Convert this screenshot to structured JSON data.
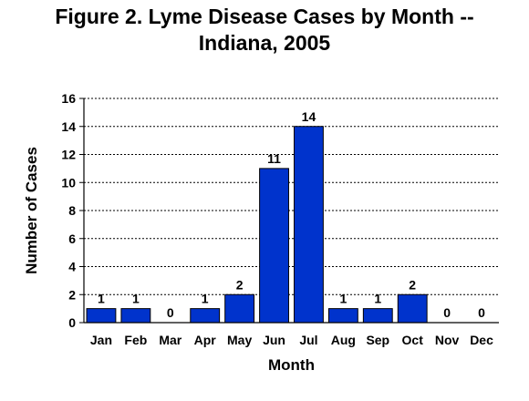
{
  "chart_data": {
    "type": "bar",
    "title_line1": "Figure 2. Lyme Disease Cases by Month --",
    "title_line2": "Indiana, 2005",
    "xlabel": "Month",
    "ylabel": "Number of Cases",
    "categories": [
      "Jan",
      "Feb",
      "Mar",
      "Apr",
      "May",
      "Jun",
      "Jul",
      "Aug",
      "Sep",
      "Oct",
      "Nov",
      "Dec"
    ],
    "values": [
      1,
      1,
      0,
      1,
      2,
      11,
      14,
      1,
      1,
      2,
      0,
      0
    ],
    "data_labels": [
      "1",
      "1",
      "0",
      "1",
      "2",
      "11",
      "14",
      "1",
      "1",
      "2",
      "0",
      "0"
    ],
    "ylim": [
      0,
      16
    ],
    "yticks": [
      0,
      2,
      4,
      6,
      8,
      10,
      12,
      14,
      16
    ],
    "ytick_labels": [
      "0",
      "2",
      "4",
      "6",
      "8",
      "10",
      "12",
      "14",
      "16"
    ],
    "grid": "horizontal dashed",
    "legend": "none",
    "bar_color": "#0033CC"
  }
}
